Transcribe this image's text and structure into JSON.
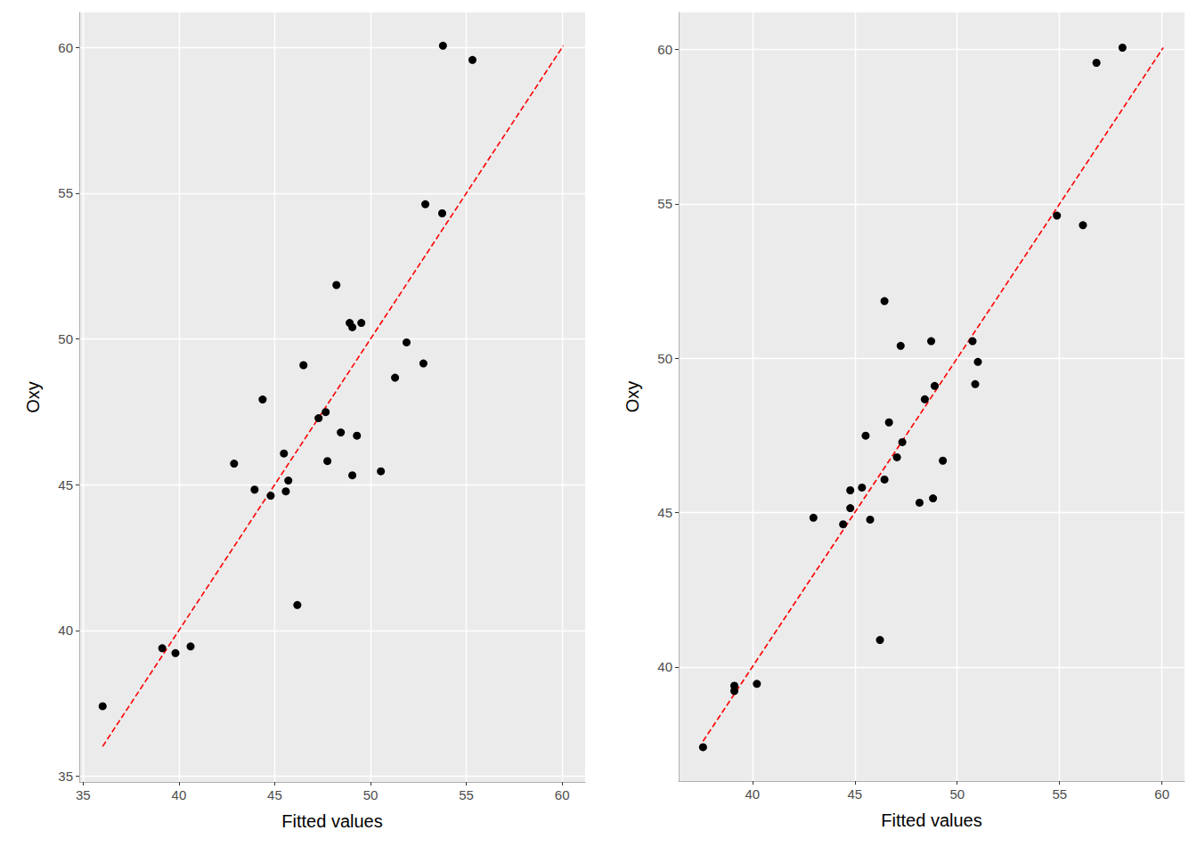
{
  "chart_data": [
    {
      "type": "scatter",
      "x_label": "Fitted values",
      "y_label": "Oxy",
      "grid": true,
      "xlim": [
        34.8,
        61.2
      ],
      "ylim": [
        34.8,
        61.2
      ],
      "xticks": [
        35,
        40,
        45,
        50,
        55,
        60
      ],
      "yticks": [
        35,
        40,
        45,
        50,
        55,
        60
      ],
      "series": [
        {
          "type": "scatter",
          "color": "#000000",
          "marker": "circle",
          "x": [
            36.02,
            39.13,
            39.82,
            40.61,
            46.18,
            42.88,
            43.95,
            44.79,
            45.71,
            45.58,
            45.48,
            47.66,
            47.29,
            44.37,
            48.22,
            48.45,
            49.05,
            48.91,
            49.52,
            47.75,
            49.05,
            49.29,
            50.54,
            51.28,
            51.88,
            46.5,
            52.76,
            52.86,
            53.74,
            53.78,
            55.32
          ],
          "values": [
            37.4,
            39.39,
            39.22,
            39.45,
            40.87,
            45.72,
            44.83,
            44.62,
            45.14,
            44.77,
            46.07,
            47.49,
            47.28,
            47.92,
            51.85,
            46.79,
            50.4,
            50.55,
            50.55,
            45.81,
            45.32,
            46.68,
            45.46,
            48.67,
            49.88,
            49.1,
            49.16,
            54.62,
            54.31,
            60.06,
            59.57
          ]
        },
        {
          "type": "line",
          "color": "#ff0000",
          "line_style": "dashed",
          "x": [
            36.02,
            60.06
          ],
          "values": [
            36.02,
            60.06
          ]
        }
      ]
    },
    {
      "type": "scatter",
      "x_label": "Fitted values",
      "y_label": "Oxy",
      "grid": true,
      "xlim": [
        36.4,
        61.1
      ],
      "ylim": [
        36.3,
        61.2
      ],
      "xticks": [
        40,
        45,
        50,
        55,
        60
      ],
      "yticks": [
        40,
        45,
        50,
        55,
        60
      ],
      "series": [
        {
          "type": "scatter",
          "color": "#000000",
          "marker": "circle",
          "x": [
            37.59,
            39.12,
            39.12,
            40.22,
            46.23,
            44.78,
            42.98,
            44.43,
            44.78,
            45.75,
            46.45,
            45.53,
            47.32,
            46.67,
            46.45,
            47.06,
            47.24,
            48.73,
            50.75,
            45.35,
            48.16,
            49.3,
            48.82,
            48.42,
            51.01,
            48.9,
            50.88,
            54.87,
            56.14,
            58.07,
            56.8
          ],
          "values": [
            37.4,
            39.39,
            39.22,
            39.45,
            40.87,
            45.72,
            44.83,
            44.62,
            45.14,
            44.77,
            46.07,
            47.49,
            47.28,
            47.92,
            51.85,
            46.79,
            50.4,
            50.55,
            50.55,
            45.81,
            45.32,
            46.68,
            45.46,
            48.67,
            49.88,
            49.1,
            49.16,
            54.62,
            54.31,
            60.06,
            59.57
          ]
        },
        {
          "type": "line",
          "color": "#ff0000",
          "line_style": "dashed",
          "x": [
            37.59,
            60.06
          ],
          "values": [
            37.59,
            60.06
          ]
        }
      ]
    }
  ]
}
